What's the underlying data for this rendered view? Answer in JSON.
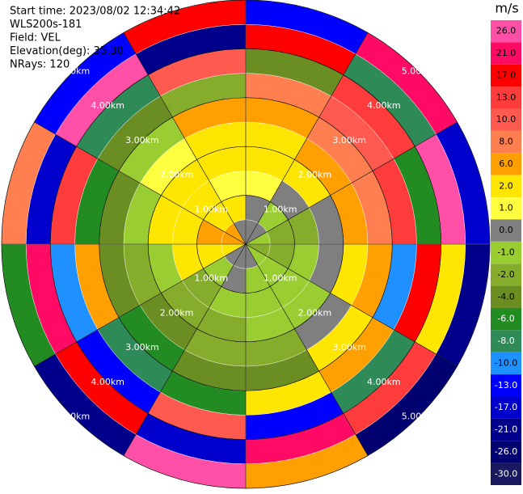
{
  "chart_data": {
    "type": "ppi",
    "info": [
      "Start time: 2023/08/02 12:34:42",
      "WLS200s-181",
      "Field: VEL",
      "Elevation(deg): 35.30",
      "NRays: 120"
    ],
    "colorbar_title": "m/s",
    "rlim": [
      0,
      5
    ],
    "rticks": [
      {
        "value": 1,
        "label": "1.00km"
      },
      {
        "value": 2,
        "label": "2.00km"
      },
      {
        "value": 3,
        "label": "3.00km"
      },
      {
        "value": 4,
        "label": "4.00km"
      },
      {
        "value": 5,
        "label": "5.00km"
      }
    ],
    "levels": [
      {
        "value": 26,
        "label": "26.0",
        "color": "#ff4fa7"
      },
      {
        "value": 21,
        "label": "21.0",
        "color": "#ff0a64"
      },
      {
        "value": 17,
        "label": "17.0",
        "color": "#ff0000"
      },
      {
        "value": 13,
        "label": "13.0",
        "color": "#ff3c3c"
      },
      {
        "value": 10,
        "label": "10.0",
        "color": "#ff5a50"
      },
      {
        "value": 8,
        "label": "8.0",
        "color": "#ff7f50"
      },
      {
        "value": 6,
        "label": "6.0",
        "color": "#ffa000"
      },
      {
        "value": 2,
        "label": "2.0",
        "color": "#ffe600"
      },
      {
        "value": 1,
        "label": "1.0",
        "color": "#ffff40"
      },
      {
        "value": 0,
        "label": "0.0",
        "color": "#7f7f7f"
      },
      {
        "value": -1,
        "label": "-1.0",
        "color": "#9acd32"
      },
      {
        "value": -2,
        "label": "-2.0",
        "color": "#86ac2c"
      },
      {
        "value": -4,
        "label": "-4.0",
        "color": "#6b8e23"
      },
      {
        "value": -6,
        "label": "-6.0",
        "color": "#228b22"
      },
      {
        "value": -8,
        "label": "-8.0",
        "color": "#2e8b57"
      },
      {
        "value": -10,
        "label": "-10.0",
        "color": "#1e90ff"
      },
      {
        "value": -13,
        "label": "-13.0",
        "color": "#0000ff"
      },
      {
        "value": -17,
        "label": "-17.0",
        "color": "#0000cd"
      },
      {
        "value": -21,
        "label": "-21.0",
        "color": "#00008b"
      },
      {
        "value": -26,
        "label": "-26.0",
        "color": "#000070"
      },
      {
        "value": -30,
        "label": "-30.0",
        "color": "#191960"
      }
    ],
    "field": [
      [
        0,
        0,
        1,
        2,
        2,
        6,
        8,
        -4,
        17,
        -13
      ],
      [
        0,
        -1,
        0,
        2,
        6,
        8,
        10,
        13,
        -8,
        21
      ],
      [
        -1,
        -2,
        -2,
        0,
        6,
        8,
        13,
        -6,
        26,
        -17
      ],
      [
        -2,
        -2,
        -1,
        0,
        2,
        6,
        -10,
        17,
        2,
        -21
      ],
      [
        -1,
        -1,
        -1,
        -1,
        0,
        2,
        6,
        -8,
        13,
        -26
      ],
      [
        0,
        -1,
        -1,
        -1,
        -2,
        -4,
        2,
        -13,
        21,
        6
      ],
      [
        0,
        0,
        -1,
        -2,
        -2,
        -4,
        -6,
        10,
        -17,
        26
      ],
      [
        0,
        -1,
        -2,
        -2,
        -4,
        -6,
        -8,
        -13,
        17,
        -21
      ],
      [
        2,
        2,
        2,
        -1,
        -2,
        -4,
        6,
        -10,
        21,
        -6
      ],
      [
        6,
        6,
        2,
        2,
        -1,
        -4,
        -6,
        13,
        -17,
        8
      ],
      [
        6,
        2,
        2,
        2,
        1,
        -1,
        -4,
        -8,
        26,
        -13
      ],
      [
        0,
        2,
        1,
        2,
        2,
        6,
        -2,
        10,
        -21,
        17
      ]
    ]
  }
}
